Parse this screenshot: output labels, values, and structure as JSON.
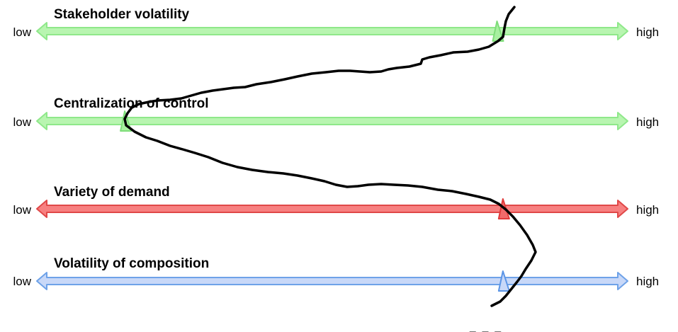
{
  "dimensions": [
    {
      "title": "Stakeholder volatility",
      "low_label": "low",
      "high_label": "high",
      "level": 0.78,
      "color": {
        "fill": "#b8f5b0",
        "stroke": "#8fe88a",
        "marker_fill": "#a8f0a0",
        "marker_stroke": "#7fdd7a"
      }
    },
    {
      "title": "Centralization of control",
      "low_label": "low",
      "high_label": "high",
      "level": 0.15,
      "color": {
        "fill": "#b8f5b0",
        "stroke": "#8fe88a",
        "marker_fill": "#a8f0a0",
        "marker_stroke": "#7fdd7a"
      }
    },
    {
      "title": "Variety of demand",
      "low_label": "low",
      "high_label": "high",
      "level": 0.79,
      "color": {
        "fill": "#f78080",
        "stroke": "#e04848",
        "marker_fill": "#f06a6a",
        "marker_stroke": "#e03a3a"
      }
    },
    {
      "title": "Volatility of composition",
      "low_label": "low",
      "high_label": "high",
      "level": 0.79,
      "color": {
        "fill": "#c8d8f8",
        "stroke": "#6ea2e8",
        "marker_fill": "#c8d8f8",
        "marker_stroke": "#5b95e6"
      }
    }
  ],
  "profile_line_color": "#000000",
  "continuation": "..."
}
